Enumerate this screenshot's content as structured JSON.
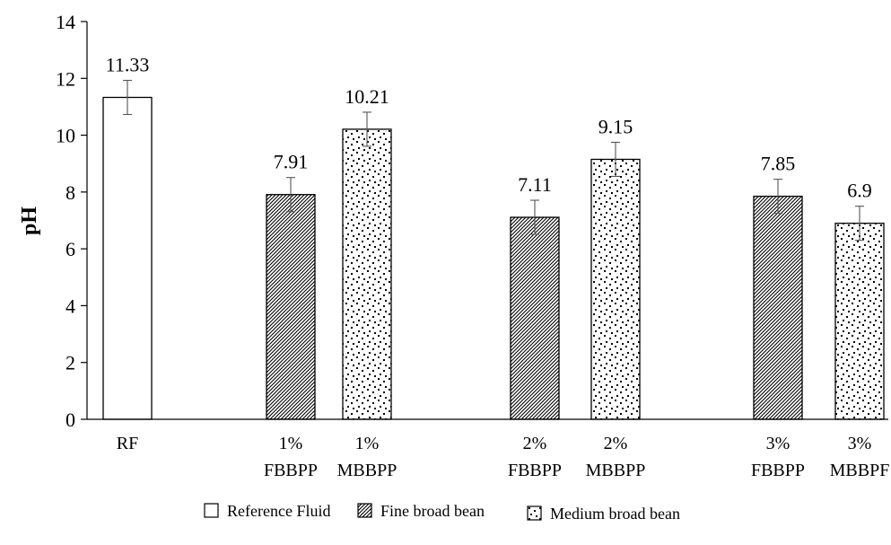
{
  "chart_data": {
    "type": "bar",
    "ylabel": "pH",
    "xlabel": "",
    "ylim": [
      0,
      14
    ],
    "yticks": [
      "0",
      "2",
      "4",
      "6",
      "8",
      "10",
      "12",
      "14"
    ],
    "grid": false,
    "legend_position": "bottom",
    "legend": [
      {
        "label": "Reference Fluid",
        "pattern": "none"
      },
      {
        "label": "Fine broad bean",
        "pattern": "diagonal"
      },
      {
        "label": "Medium broad bean",
        "pattern": "dots"
      }
    ],
    "bars": [
      {
        "line1": "RF",
        "line2": "",
        "value": 11.33,
        "label": "11.33",
        "error": 0.6,
        "pattern": "none"
      },
      {
        "line1": "1%",
        "line2": "FBBPP",
        "value": 7.91,
        "label": "7.91",
        "error": 0.6,
        "pattern": "diagonal"
      },
      {
        "line1": "1%",
        "line2": "MBBPP",
        "value": 10.21,
        "label": "10.21",
        "error": 0.6,
        "pattern": "dots"
      },
      {
        "line1": "2%",
        "line2": "FBBPP",
        "value": 7.11,
        "label": "7.11",
        "error": 0.6,
        "pattern": "diagonal"
      },
      {
        "line1": "2%",
        "line2": "MBBPP",
        "value": 9.15,
        "label": "9.15",
        "error": 0.6,
        "pattern": "dots"
      },
      {
        "line1": "3%",
        "line2": "FBBPP",
        "value": 7.85,
        "label": "7.85",
        "error": 0.6,
        "pattern": "diagonal"
      },
      {
        "line1": "3%",
        "line2": "MBBPF",
        "value": 6.9,
        "label": "6.9",
        "error": 0.6,
        "pattern": "dots"
      }
    ]
  }
}
